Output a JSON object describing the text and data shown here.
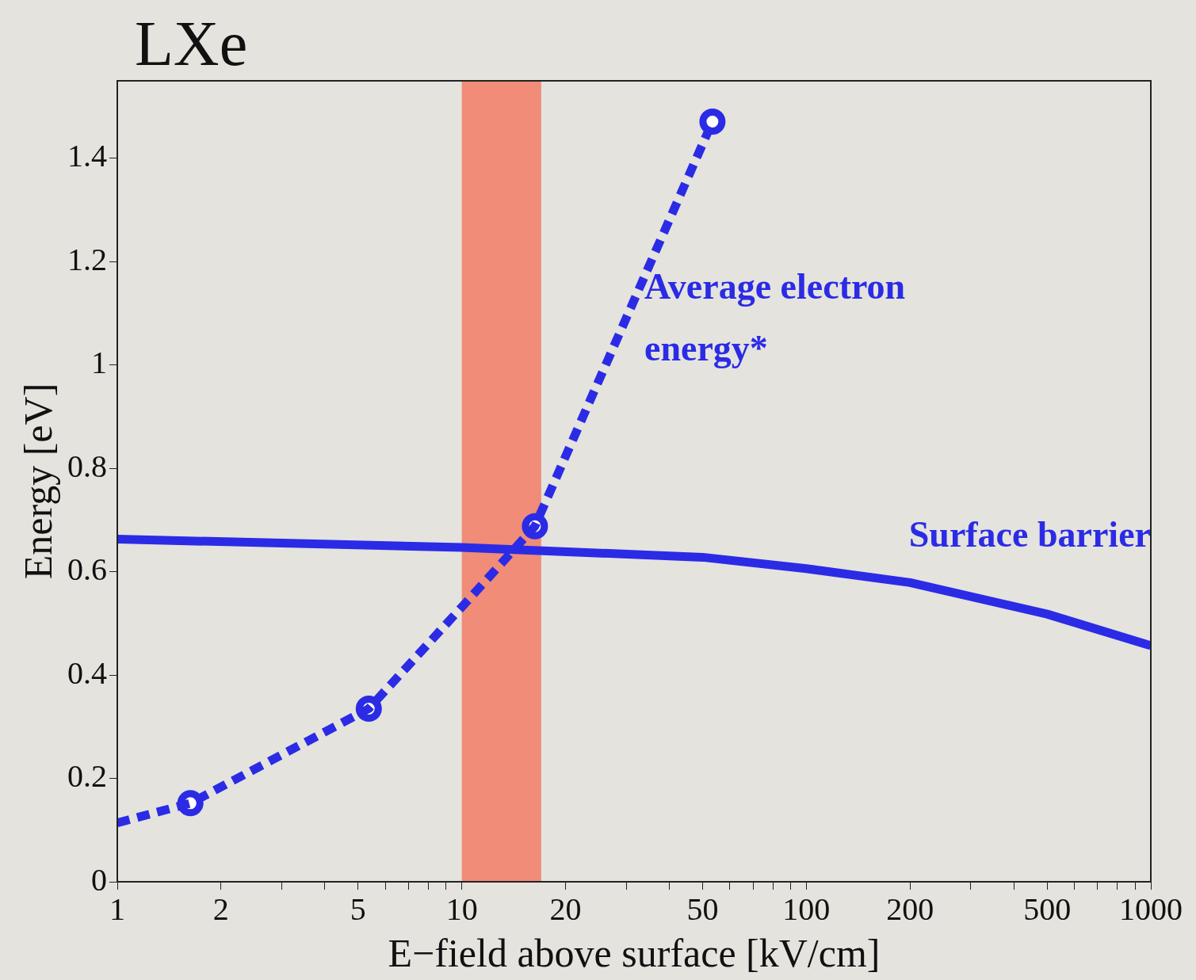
{
  "chart_data": {
    "type": "line",
    "title": "LXe",
    "xlabel": "E−field above surface [kV/cm]",
    "ylabel": "Energy [eV]",
    "log": "x",
    "grid": false,
    "legend": false,
    "xlim": [
      1,
      1000
    ],
    "xticks": [
      1,
      2,
      {
        "value": 3,
        "label": null
      },
      {
        "value": 4,
        "label": null
      },
      5,
      {
        "value": 6,
        "label": null
      },
      {
        "value": 7,
        "label": null
      },
      {
        "value": 8,
        "label": null
      },
      {
        "value": 9,
        "label": null
      },
      10,
      20,
      {
        "value": 30,
        "label": null
      },
      {
        "value": 40,
        "label": null
      },
      50,
      {
        "value": 60,
        "label": null
      },
      {
        "value": 70,
        "label": null
      },
      {
        "value": 80,
        "label": null
      },
      {
        "value": 90,
        "label": null
      },
      100,
      200,
      {
        "value": 300,
        "label": null
      },
      {
        "value": 400,
        "label": null
      },
      500,
      {
        "value": 600,
        "label": null
      },
      {
        "value": 700,
        "label": null
      },
      {
        "value": 800,
        "label": null
      },
      {
        "value": 900,
        "label": null
      },
      1000
    ],
    "ylim": [
      0,
      1.55
    ],
    "yticks": [
      0,
      0.2,
      0.4,
      0.6,
      0.8,
      1,
      1.2,
      1.4
    ],
    "series": [
      {
        "type": "line",
        "name": "Average electron energy*",
        "color": "#2b2be6",
        "line_style": "dashed",
        "marker": "none",
        "x": [
          1,
          1.63,
          5.37,
          10.3,
          16.3,
          53.4
        ],
        "values": [
          0.114,
          0.152,
          0.335,
          0.541,
          0.688,
          1.471
        ]
      },
      {
        "type": "scatter",
        "color": "#2b2be6",
        "marker": "circle",
        "x": [
          1.63,
          5.37,
          16.3,
          53.4
        ],
        "values": [
          0.152,
          0.335,
          0.688,
          1.471
        ]
      },
      {
        "type": "line",
        "name": "Surface barrier",
        "color": "#2b2be6",
        "line_style": "solid",
        "marker": "none",
        "x": [
          1,
          10,
          50,
          100,
          200,
          500,
          1000
        ],
        "values": [
          0.663,
          0.647,
          0.628,
          0.606,
          0.579,
          0.518,
          0.457
        ]
      }
    ],
    "bands": [
      {
        "axis": "x",
        "from": 10,
        "to": 17,
        "color": "#f08c78"
      }
    ]
  }
}
